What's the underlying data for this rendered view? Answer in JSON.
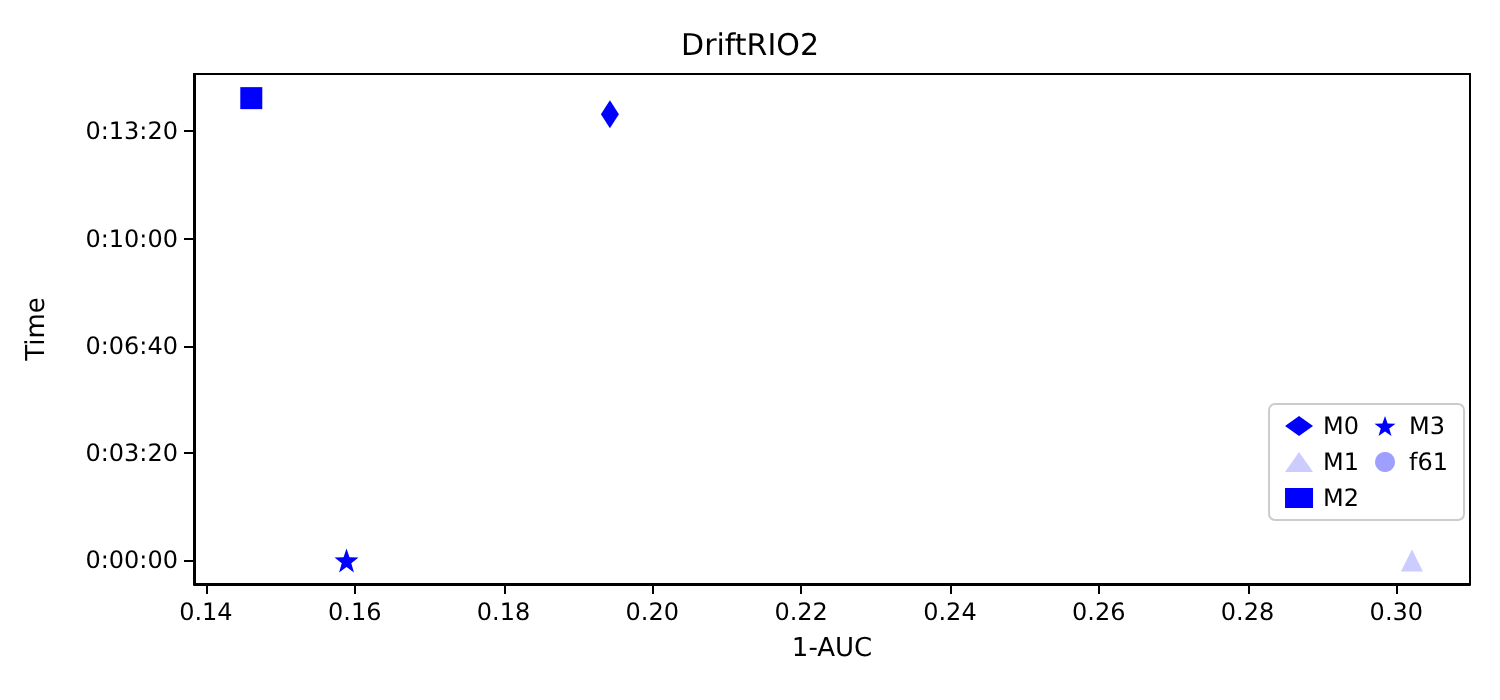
{
  "chart_data": {
    "type": "scatter",
    "title": "DriftRIO2",
    "xlabel": "1-AUC",
    "ylabel": "Time",
    "xlim": [
      0.1384,
      0.3099
    ],
    "xticks": [
      {
        "value": 0.14,
        "label": "0.14"
      },
      {
        "value": 0.16,
        "label": "0.16"
      },
      {
        "value": 0.18,
        "label": "0.18"
      },
      {
        "value": 0.2,
        "label": "0.20"
      },
      {
        "value": 0.22,
        "label": "0.22"
      },
      {
        "value": 0.24,
        "label": "0.24"
      },
      {
        "value": 0.26,
        "label": "0.26"
      },
      {
        "value": 0.28,
        "label": "0.28"
      },
      {
        "value": 0.3,
        "label": "0.30"
      }
    ],
    "ylim": [
      -44,
      907
    ],
    "yticks": [
      {
        "value": 0,
        "label": "0:00:00"
      },
      {
        "value": 200,
        "label": "0:03:20"
      },
      {
        "value": 400,
        "label": "0:06:40"
      },
      {
        "value": 600,
        "label": "0:10:00"
      },
      {
        "value": 800,
        "label": "0:13:20"
      }
    ],
    "legend": "bottom right",
    "grid": false,
    "series": [
      {
        "name": "M0",
        "color": "#0000ff",
        "marker": "diamond",
        "x": [
          0.1943
        ],
        "values": [
          832
        ]
      },
      {
        "name": "M1",
        "color": "#ccccff",
        "marker": "triangle",
        "x": [
          0.3021
        ],
        "values": [
          0
        ]
      },
      {
        "name": "M2",
        "color": "#0000ff",
        "marker": "square",
        "x": [
          0.1461
        ],
        "values": [
          862
        ]
      },
      {
        "name": "M3",
        "color": "#0000ff",
        "marker": "star",
        "x": [
          0.1589
        ],
        "values": [
          0
        ]
      },
      {
        "name": "f61",
        "color": "#9f9fff",
        "marker": "circle"
      }
    ]
  }
}
